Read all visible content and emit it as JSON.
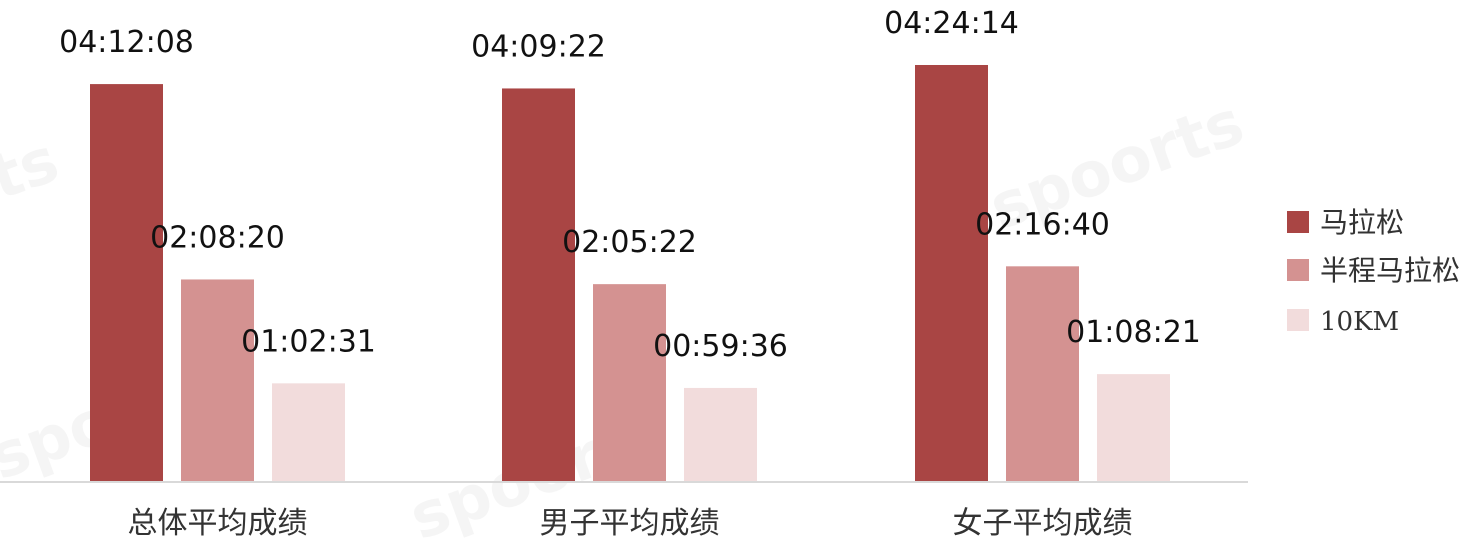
{
  "chart_data": {
    "type": "bar",
    "categories": [
      "总体平均成绩",
      "男子平均成绩",
      "女子平均成绩"
    ],
    "series": [
      {
        "name": "马拉松",
        "color": "#A94544",
        "values": [
          15128,
          14962,
          15854
        ],
        "labels": [
          "04:12:08",
          "04:09:22",
          "04:24:14"
        ]
      },
      {
        "name": "半程马拉松",
        "color": "#D49291",
        "values": [
          7700,
          7522,
          8200
        ],
        "labels": [
          "02:08:20",
          "02:05:22",
          "02:16:40"
        ]
      },
      {
        "name": "10KM",
        "color": "#F2DCDC",
        "values": [
          3751,
          3576,
          4101
        ],
        "labels": [
          "01:02:31",
          "00:59:36",
          "01:08:21"
        ]
      }
    ],
    "value_unit": "seconds",
    "ylim": [
      0,
      16500
    ],
    "legend_position": "right",
    "grid": false
  }
}
